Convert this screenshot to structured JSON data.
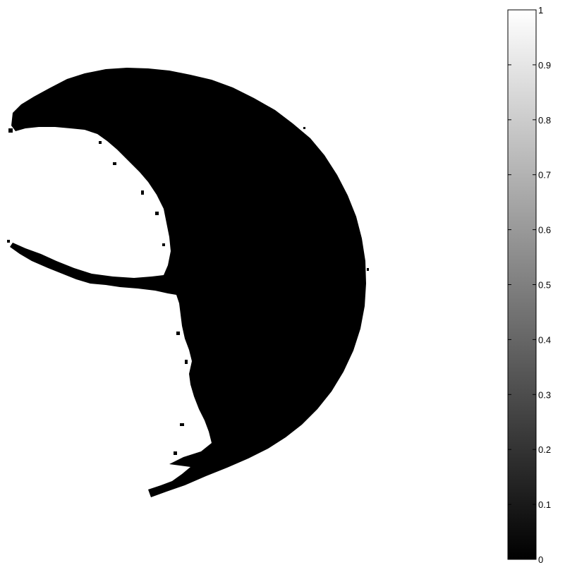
{
  "chart_data": {
    "type": "heatmap",
    "title": "",
    "xlabel": "",
    "ylabel": "",
    "colormap": "gray",
    "colorbar": {
      "range": [
        0,
        1
      ],
      "ticks": [
        0,
        0.1,
        0.2,
        0.3,
        0.4,
        0.5,
        0.6,
        0.7,
        0.8,
        0.9,
        1
      ],
      "tick_labels": [
        "0",
        "0.1",
        "0.2",
        "0.3",
        "0.4",
        "0.5",
        "0.6",
        "0.7",
        "0.8",
        "0.9",
        "1"
      ],
      "low_color": "#000000",
      "high_color": "#ffffff"
    },
    "image_value_region": 0,
    "image_value_background": 1
  }
}
